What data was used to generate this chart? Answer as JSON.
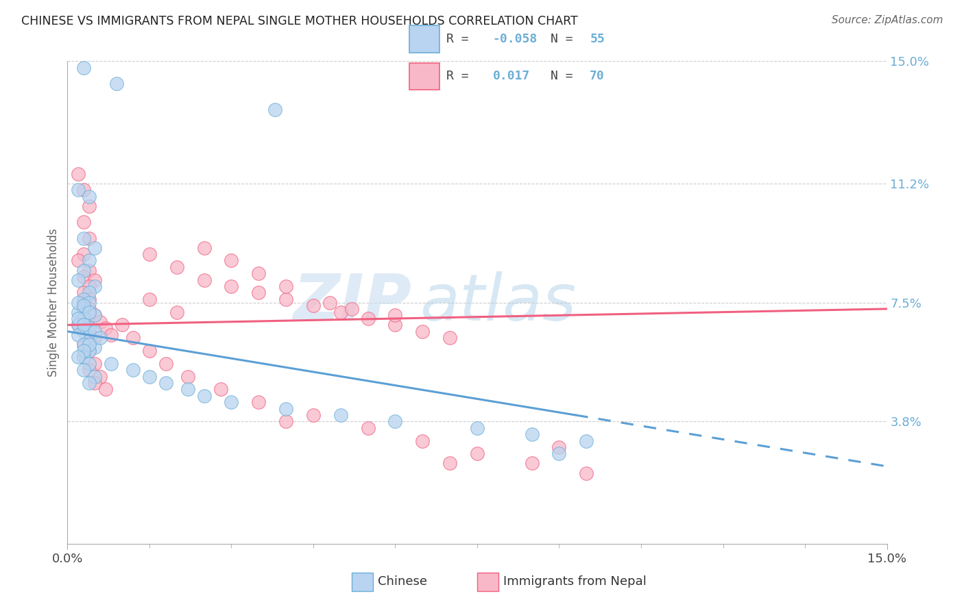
{
  "title": "CHINESE VS IMMIGRANTS FROM NEPAL SINGLE MOTHER HOUSEHOLDS CORRELATION CHART",
  "source": "Source: ZipAtlas.com",
  "ylabel": "Single Mother Households",
  "xlim": [
    0.0,
    0.15
  ],
  "ylim": [
    0.0,
    0.15
  ],
  "ytick_values": [
    0.038,
    0.075,
    0.112,
    0.15
  ],
  "ytick_labels": [
    "3.8%",
    "7.5%",
    "11.2%",
    "15.0%"
  ],
  "color_chinese_fill": "#b8d4f0",
  "color_chinese_edge": "#6baed6",
  "color_nepal_fill": "#f8b8c8",
  "color_nepal_edge": "#f06080",
  "color_chinese_line": "#5b9fd4",
  "color_nepal_line": "#f06080",
  "watermark_zip": "ZIP",
  "watermark_atlas": "atlas",
  "chinese_x": [
    0.003,
    0.009,
    0.038,
    0.002,
    0.004,
    0.003,
    0.005,
    0.004,
    0.003,
    0.002,
    0.005,
    0.004,
    0.003,
    0.004,
    0.003,
    0.002,
    0.005,
    0.003,
    0.002,
    0.004,
    0.003,
    0.002,
    0.004,
    0.003,
    0.005,
    0.004,
    0.003,
    0.008,
    0.012,
    0.015,
    0.018,
    0.022,
    0.025,
    0.03,
    0.04,
    0.05,
    0.002,
    0.003,
    0.004,
    0.002,
    0.003,
    0.005,
    0.006,
    0.004,
    0.003,
    0.002,
    0.004,
    0.003,
    0.005,
    0.004,
    0.06,
    0.075,
    0.085,
    0.095,
    0.09
  ],
  "chinese_y": [
    0.148,
    0.143,
    0.135,
    0.11,
    0.108,
    0.095,
    0.092,
    0.088,
    0.085,
    0.082,
    0.08,
    0.078,
    0.076,
    0.075,
    0.073,
    0.072,
    0.071,
    0.07,
    0.068,
    0.067,
    0.066,
    0.065,
    0.063,
    0.062,
    0.061,
    0.06,
    0.058,
    0.056,
    0.054,
    0.052,
    0.05,
    0.048,
    0.046,
    0.044,
    0.042,
    0.04,
    0.075,
    0.074,
    0.072,
    0.07,
    0.068,
    0.066,
    0.064,
    0.062,
    0.06,
    0.058,
    0.056,
    0.054,
    0.052,
    0.05,
    0.038,
    0.036,
    0.034,
    0.032,
    0.028
  ],
  "nepal_x": [
    0.002,
    0.003,
    0.004,
    0.003,
    0.004,
    0.003,
    0.002,
    0.004,
    0.003,
    0.005,
    0.004,
    0.003,
    0.004,
    0.003,
    0.004,
    0.003,
    0.002,
    0.004,
    0.005,
    0.003,
    0.004,
    0.003,
    0.005,
    0.004,
    0.006,
    0.005,
    0.007,
    0.015,
    0.02,
    0.025,
    0.03,
    0.035,
    0.04,
    0.045,
    0.05,
    0.055,
    0.06,
    0.065,
    0.07,
    0.025,
    0.03,
    0.035,
    0.04,
    0.015,
    0.02,
    0.01,
    0.012,
    0.015,
    0.018,
    0.022,
    0.028,
    0.035,
    0.045,
    0.055,
    0.065,
    0.075,
    0.085,
    0.095,
    0.09,
    0.048,
    0.052,
    0.06,
    0.07,
    0.04,
    0.003,
    0.004,
    0.005,
    0.006,
    0.007,
    0.008
  ],
  "nepal_y": [
    0.115,
    0.11,
    0.105,
    0.1,
    0.095,
    0.09,
    0.088,
    0.085,
    0.083,
    0.082,
    0.08,
    0.078,
    0.076,
    0.074,
    0.072,
    0.07,
    0.068,
    0.066,
    0.064,
    0.062,
    0.06,
    0.058,
    0.056,
    0.054,
    0.052,
    0.05,
    0.048,
    0.09,
    0.086,
    0.082,
    0.08,
    0.078,
    0.076,
    0.074,
    0.072,
    0.07,
    0.068,
    0.066,
    0.064,
    0.092,
    0.088,
    0.084,
    0.08,
    0.076,
    0.072,
    0.068,
    0.064,
    0.06,
    0.056,
    0.052,
    0.048,
    0.044,
    0.04,
    0.036,
    0.032,
    0.028,
    0.025,
    0.022,
    0.03,
    0.075,
    0.073,
    0.071,
    0.025,
    0.038,
    0.075,
    0.073,
    0.071,
    0.069,
    0.067,
    0.065
  ],
  "trend_chinese_x0": 0.0,
  "trend_chinese_y0": 0.066,
  "trend_chinese_x1": 0.093,
  "trend_chinese_y1": 0.04,
  "trend_chinese_dash_x0": 0.093,
  "trend_chinese_dash_x1": 0.15,
  "trend_nepal_x0": 0.0,
  "trend_nepal_y0": 0.068,
  "trend_nepal_x1": 0.15,
  "trend_nepal_y1": 0.073
}
